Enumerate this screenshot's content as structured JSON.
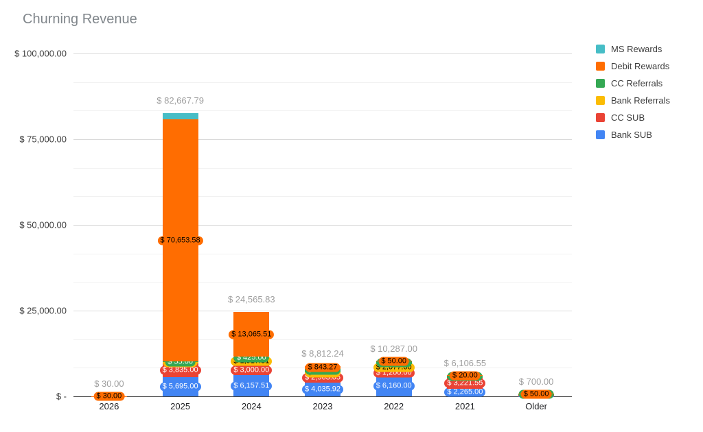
{
  "title": "Churning Revenue",
  "chart_data": {
    "type": "bar",
    "stacked": true,
    "title": "Churning Revenue",
    "categories": [
      "2026",
      "2025",
      "2024",
      "2023",
      "2022",
      "2021",
      "Older"
    ],
    "series": [
      {
        "name": "Bank SUB",
        "color": "#4285F4",
        "label_color": "#ffffff",
        "values": [
          0,
          5695.0,
          6157.51,
          4035.92,
          6160.0,
          2265.0,
          100.0
        ],
        "labels": [
          null,
          "$ 5,695.00",
          "$ 6,157.51",
          "$ 4,035.92",
          "$ 6,160.00",
          "$ 2,265.00",
          null
        ]
      },
      {
        "name": "CC SUB",
        "color": "#EA4335",
        "label_color": "#ffffff",
        "values": [
          0,
          3835.0,
          3000.0,
          2563.05,
          1200.0,
          3221.55,
          300.0
        ],
        "labels": [
          null,
          "$ 3,835.00",
          "$ 3,000.00",
          "$ 2,563.05",
          "$ 1,200.00",
          "$ 3,221.55",
          null
        ]
      },
      {
        "name": "Bank Referrals",
        "color": "#FBBC04",
        "label_color": "#000000",
        "values": [
          0,
          545.0,
          1917.81,
          500.0,
          2077.0,
          0,
          0
        ],
        "labels": [
          null,
          "$ 545.00",
          "$ 1,917.81",
          "$ 500.00",
          "$ 2,077.00",
          null,
          null
        ]
      },
      {
        "name": "CC Referrals",
        "color": "#34A853",
        "label_color": "#ffffff",
        "values": [
          0,
          55.0,
          425.0,
          870.0,
          800.0,
          600.0,
          250.0
        ],
        "labels": [
          null,
          "$ 55.00",
          "$ 425.00",
          "$ 870.00",
          "$ 800.00",
          "$ 600.00",
          "$ 250.00"
        ]
      },
      {
        "name": "Debit Rewards",
        "color": "#FF6D01",
        "label_color": "#000000",
        "values": [
          30.0,
          70653.58,
          13065.51,
          843.27,
          50.0,
          20.0,
          50.0
        ],
        "labels": [
          "$ 30.00",
          "$ 70,653.58",
          "$ 13,065.51",
          "$ 843.27",
          "$ 50.00",
          "$ 20.00",
          "$ 50.00"
        ]
      },
      {
        "name": "MS Rewards",
        "color": "#46BDC6",
        "label_color": "#000000",
        "values": [
          0,
          1884.21,
          0,
          0,
          0,
          0,
          0
        ],
        "labels": [
          null,
          null,
          null,
          null,
          null,
          null,
          null
        ]
      }
    ],
    "totals": [
      "$ 30.00",
      "$ 82,667.79",
      "$ 24,565.83",
      "$ 8,812.24",
      "$ 10,287.00",
      "$ 6,106.55",
      "$ 700.00"
    ],
    "total_values": [
      30.0,
      82667.79,
      24565.83,
      8812.24,
      10287.0,
      6106.55,
      700.0
    ],
    "y_axis": {
      "max": 100000,
      "major_step": 25000,
      "minor_divisions": 3,
      "ticks": [
        {
          "value": 0,
          "label": "$ -"
        },
        {
          "value": 25000,
          "label": "$ 25,000.00"
        },
        {
          "value": 50000,
          "label": "$ 50,000.00"
        },
        {
          "value": 75000,
          "label": "$ 75,000.00"
        },
        {
          "value": 100000,
          "label": "$ 100,000.00"
        }
      ]
    },
    "legend_position": "right",
    "legend": [
      "MS Rewards",
      "Debit Rewards",
      "CC Referrals",
      "Bank Referrals",
      "CC SUB",
      "Bank SUB"
    ],
    "grid": true
  }
}
